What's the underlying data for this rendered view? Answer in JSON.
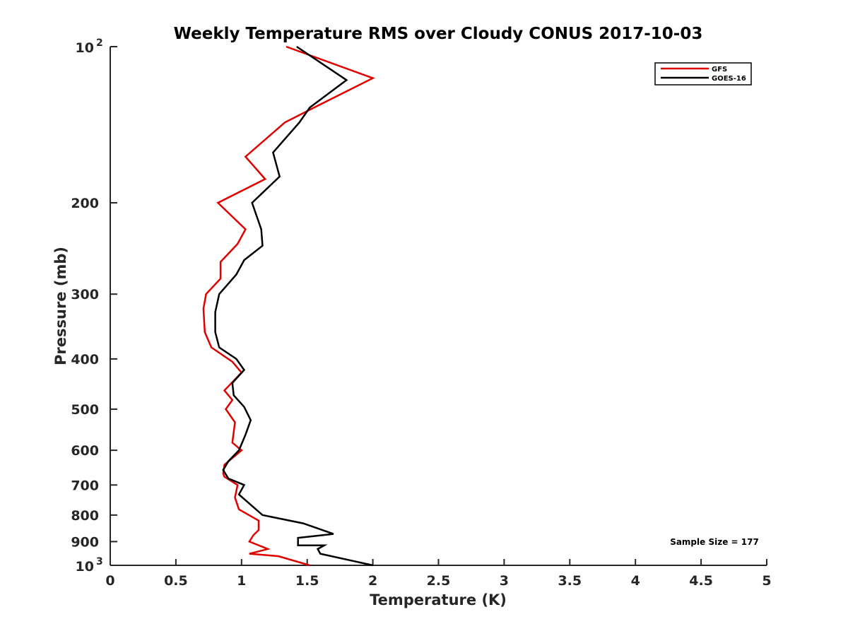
{
  "chart_data": {
    "type": "line",
    "title": "Weekly Temperature RMS over Cloudy CONUS 2017-10-03",
    "xlabel": "Temperature (K)",
    "ylabel": "Pressure (mb)",
    "xlim": [
      0,
      5
    ],
    "ylim": [
      1000,
      100
    ],
    "y_scale": "log",
    "y_reversed": true,
    "grid": false,
    "x_ticks": [
      {
        "value": 0,
        "label": "0"
      },
      {
        "value": 0.5,
        "label": "0.5"
      },
      {
        "value": 1,
        "label": "1"
      },
      {
        "value": 1.5,
        "label": "1.5"
      },
      {
        "value": 2,
        "label": "2"
      },
      {
        "value": 2.5,
        "label": "2.5"
      },
      {
        "value": 3,
        "label": "3"
      },
      {
        "value": 3.5,
        "label": "3.5"
      },
      {
        "value": 4,
        "label": "4"
      },
      {
        "value": 4.5,
        "label": "4.5"
      },
      {
        "value": 5,
        "label": "5"
      }
    ],
    "y_ticks": [
      {
        "value": 100,
        "base": "10",
        "exp": "2"
      },
      {
        "value": 200,
        "label": "200"
      },
      {
        "value": 300,
        "label": "300"
      },
      {
        "value": 400,
        "label": "400"
      },
      {
        "value": 500,
        "label": "500"
      },
      {
        "value": 600,
        "label": "600"
      },
      {
        "value": 700,
        "label": "700"
      },
      {
        "value": 800,
        "label": "800"
      },
      {
        "value": 900,
        "label": "900"
      },
      {
        "value": 1000,
        "base": "10",
        "exp": "3"
      }
    ],
    "legend_position": "top-right",
    "annotation": "Sample Size = 177",
    "series": [
      {
        "name": "GFS",
        "color": "#e00000",
        "points": [
          {
            "x": 1.34,
            "y": 100
          },
          {
            "x": 2.0,
            "y": 115
          },
          {
            "x": 1.58,
            "y": 130
          },
          {
            "x": 1.33,
            "y": 140
          },
          {
            "x": 1.03,
            "y": 163
          },
          {
            "x": 1.18,
            "y": 180
          },
          {
            "x": 0.82,
            "y": 200
          },
          {
            "x": 1.03,
            "y": 225
          },
          {
            "x": 0.97,
            "y": 240
          },
          {
            "x": 0.84,
            "y": 260
          },
          {
            "x": 0.84,
            "y": 280
          },
          {
            "x": 0.73,
            "y": 300
          },
          {
            "x": 0.71,
            "y": 320
          },
          {
            "x": 0.72,
            "y": 355
          },
          {
            "x": 0.77,
            "y": 380
          },
          {
            "x": 0.93,
            "y": 405
          },
          {
            "x": 1.0,
            "y": 425
          },
          {
            "x": 0.87,
            "y": 460
          },
          {
            "x": 0.93,
            "y": 480
          },
          {
            "x": 0.88,
            "y": 500
          },
          {
            "x": 0.95,
            "y": 530
          },
          {
            "x": 0.93,
            "y": 580
          },
          {
            "x": 1.0,
            "y": 600
          },
          {
            "x": 0.87,
            "y": 640
          },
          {
            "x": 0.86,
            "y": 665
          },
          {
            "x": 0.87,
            "y": 675
          },
          {
            "x": 0.97,
            "y": 700
          },
          {
            "x": 0.95,
            "y": 740
          },
          {
            "x": 0.98,
            "y": 780
          },
          {
            "x": 1.13,
            "y": 820
          },
          {
            "x": 1.13,
            "y": 855
          },
          {
            "x": 1.09,
            "y": 875
          },
          {
            "x": 1.06,
            "y": 900
          },
          {
            "x": 1.2,
            "y": 930
          },
          {
            "x": 1.06,
            "y": 950
          },
          {
            "x": 1.28,
            "y": 960
          },
          {
            "x": 1.52,
            "y": 1000
          }
        ]
      },
      {
        "name": "GOES-16",
        "color": "#000000",
        "points": [
          {
            "x": 1.42,
            "y": 100
          },
          {
            "x": 1.8,
            "y": 116
          },
          {
            "x": 1.52,
            "y": 131
          },
          {
            "x": 1.44,
            "y": 140
          },
          {
            "x": 1.24,
            "y": 160
          },
          {
            "x": 1.29,
            "y": 178
          },
          {
            "x": 1.08,
            "y": 200
          },
          {
            "x": 1.15,
            "y": 225
          },
          {
            "x": 1.16,
            "y": 242
          },
          {
            "x": 1.02,
            "y": 258
          },
          {
            "x": 0.96,
            "y": 275
          },
          {
            "x": 0.83,
            "y": 300
          },
          {
            "x": 0.8,
            "y": 325
          },
          {
            "x": 0.8,
            "y": 355
          },
          {
            "x": 0.83,
            "y": 380
          },
          {
            "x": 0.96,
            "y": 400
          },
          {
            "x": 1.02,
            "y": 420
          },
          {
            "x": 0.93,
            "y": 445
          },
          {
            "x": 0.94,
            "y": 470
          },
          {
            "x": 1.02,
            "y": 495
          },
          {
            "x": 1.07,
            "y": 525
          },
          {
            "x": 1.03,
            "y": 560
          },
          {
            "x": 0.98,
            "y": 600
          },
          {
            "x": 0.9,
            "y": 630
          },
          {
            "x": 0.86,
            "y": 655
          },
          {
            "x": 0.9,
            "y": 680
          },
          {
            "x": 1.02,
            "y": 700
          },
          {
            "x": 0.98,
            "y": 730
          },
          {
            "x": 1.16,
            "y": 800
          },
          {
            "x": 1.47,
            "y": 830
          },
          {
            "x": 1.7,
            "y": 870
          },
          {
            "x": 1.43,
            "y": 885
          },
          {
            "x": 1.43,
            "y": 915
          },
          {
            "x": 1.63,
            "y": 915
          },
          {
            "x": 1.58,
            "y": 930
          },
          {
            "x": 1.6,
            "y": 950
          },
          {
            "x": 2.0,
            "y": 1000
          }
        ]
      }
    ]
  }
}
